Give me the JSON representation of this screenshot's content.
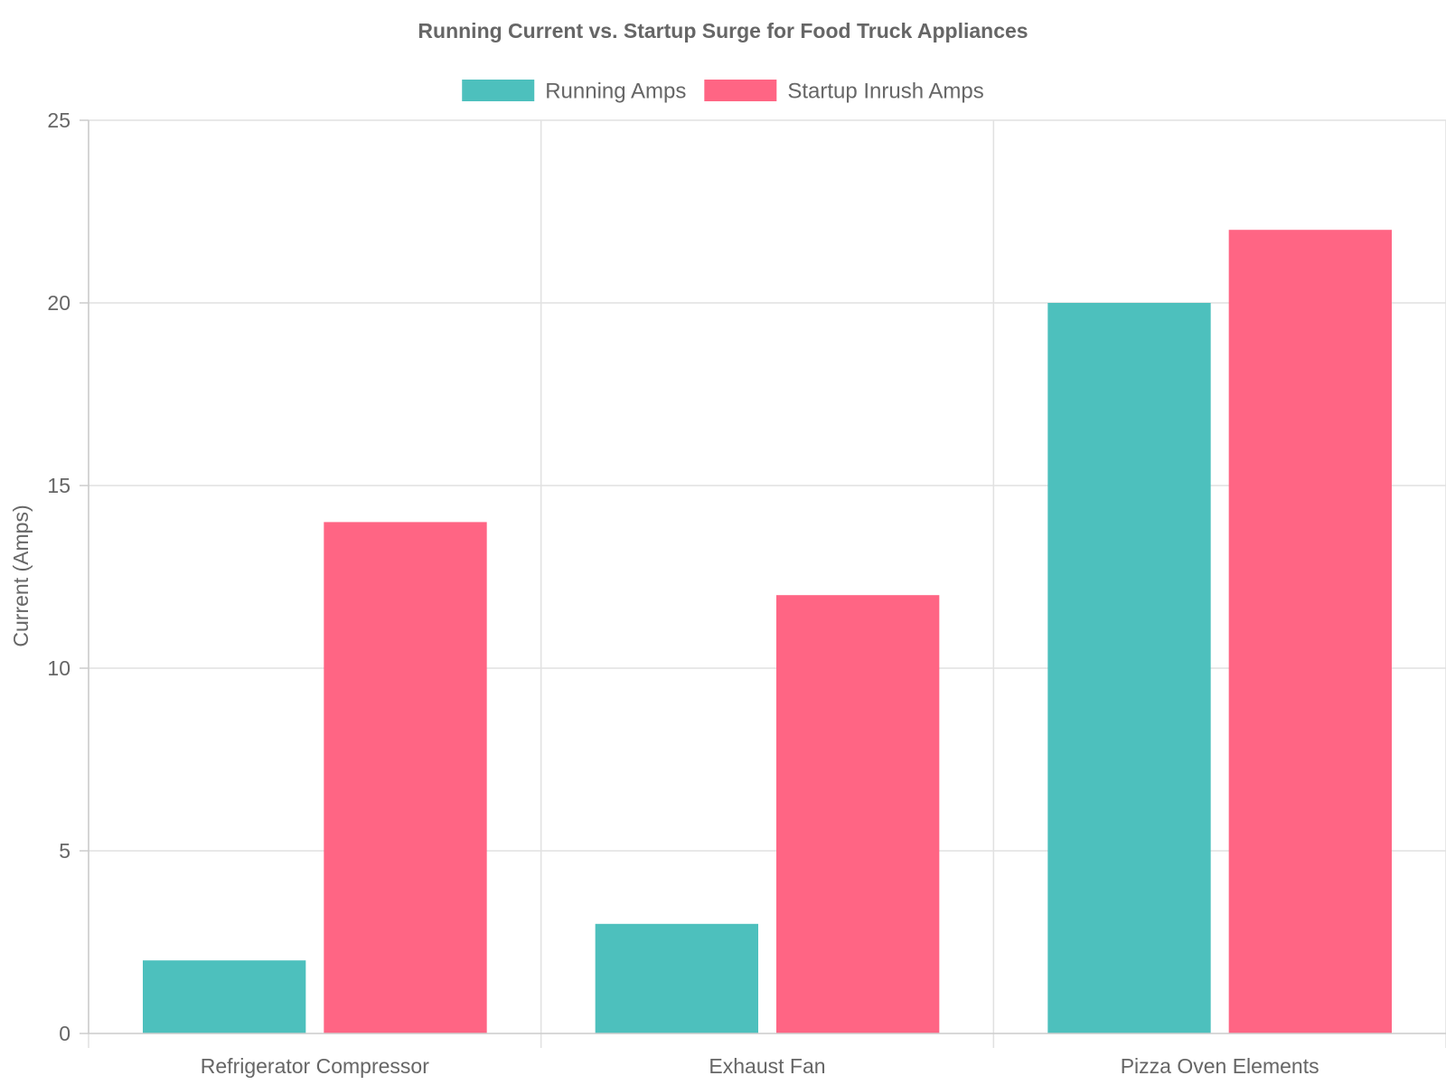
{
  "chart_data": {
    "type": "bar",
    "title": "Running Current vs. Startup Surge for Food Truck Appliances",
    "xlabel": "",
    "ylabel": "Current (Amps)",
    "categories": [
      "Refrigerator Compressor",
      "Exhaust Fan",
      "Pizza Oven Elements"
    ],
    "series": [
      {
        "name": "Running Amps",
        "values": [
          2,
          3,
          20
        ],
        "color": "#4dc0bd"
      },
      {
        "name": "Startup Inrush Amps",
        "values": [
          14,
          12,
          22
        ],
        "color": "#ff6584"
      }
    ],
    "ylim": [
      0,
      25
    ],
    "yticks": [
      0,
      5,
      10,
      15,
      20,
      25
    ],
    "grid": true,
    "legend": "top-center"
  }
}
